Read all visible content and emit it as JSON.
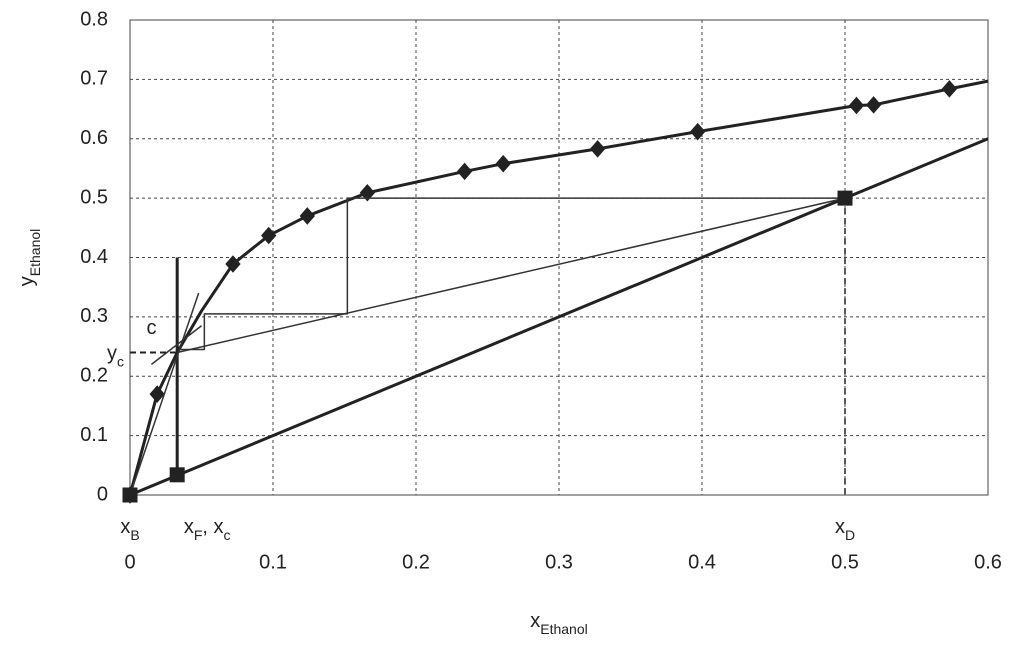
{
  "chart_data": {
    "type": "line",
    "xlabel": {
      "text": "x",
      "sub": "Ethanol"
    },
    "ylabel": {
      "text": "y",
      "sub": "Ethanol"
    },
    "xlim": [
      0,
      0.6
    ],
    "ylim": [
      0,
      0.8
    ],
    "xticks": [
      0,
      0.1,
      0.2,
      0.3,
      0.4,
      0.5,
      0.6
    ],
    "yticks": [
      0,
      0.1,
      0.2,
      0.3,
      0.4,
      0.5,
      0.6,
      0.7,
      0.8
    ],
    "grid": true,
    "series": [
      {
        "color": "#222222",
        "width": 3,
        "marker": "none",
        "x": [
          0,
          0.019,
          0.033,
          0.05,
          0.072,
          0.097,
          0.124,
          0.166,
          0.234,
          0.261,
          0.327,
          0.397,
          0.508,
          0.52,
          0.573,
          0.6
        ],
        "values": [
          0,
          0.17,
          0.24,
          0.31,
          0.389,
          0.437,
          0.47,
          0.509,
          0.545,
          0.558,
          0.583,
          0.612,
          0.656,
          0.657,
          0.684,
          0.697
        ]
      },
      {
        "color": "#222222",
        "width": 0,
        "marker": "diamond",
        "x": [
          0,
          0.019,
          0.072,
          0.097,
          0.124,
          0.166,
          0.234,
          0.261,
          0.327,
          0.397,
          0.508,
          0.52,
          0.573
        ],
        "values": [
          0,
          0.17,
          0.389,
          0.437,
          0.47,
          0.509,
          0.545,
          0.558,
          0.583,
          0.612,
          0.656,
          0.657,
          0.684
        ]
      },
      {
        "color": "#222222",
        "width": 3,
        "marker": "none",
        "x": [
          0,
          0.6
        ],
        "values": [
          0,
          0.6
        ]
      },
      {
        "color": "#333333",
        "width": 1.5,
        "marker": "none",
        "x": [
          0.033,
          0.5
        ],
        "values": [
          0.24,
          0.5
        ]
      },
      {
        "color": "#333333",
        "width": 1.5,
        "marker": "none",
        "x": [
          0.5,
          0.152,
          0.152,
          0.052,
          0.052,
          0.033
        ],
        "values": [
          0.5,
          0.5,
          0.305,
          0.305,
          0.245,
          0.245
        ]
      },
      {
        "color": "#222222",
        "width": 3,
        "marker": "none",
        "x": [
          0.033,
          0.033
        ],
        "values": [
          0.034,
          0.4
        ]
      },
      {
        "color": "#333333",
        "width": 1.5,
        "marker": "none",
        "x": [
          0,
          0.048
        ],
        "values": [
          0,
          0.34
        ]
      },
      {
        "color": "#333333",
        "width": 1.5,
        "marker": "none",
        "x": [
          0.015,
          0.05
        ],
        "values": [
          0.22,
          0.285
        ]
      },
      {
        "color": "#222222",
        "width": 2,
        "dash": true,
        "marker": "none",
        "x": [
          0,
          0.033
        ],
        "values": [
          0.24,
          0.24
        ]
      },
      {
        "color": "#222222",
        "width": 1.5,
        "dash": true,
        "marker": "none",
        "x": [
          0.5,
          0.5
        ],
        "values": [
          0.5,
          0
        ]
      },
      {
        "color": "#222222",
        "width": 0,
        "marker": "square",
        "x": [
          0,
          0.033,
          0.5
        ],
        "values": [
          0,
          0.034,
          0.5
        ]
      }
    ],
    "annotations": [
      {
        "text": "x",
        "sub": "B",
        "x": 0
      },
      {
        "text": "x",
        "sub": "F",
        "more": ", x",
        "sub2": "c",
        "x": 0.033
      },
      {
        "text": "x",
        "sub": "D",
        "x": 0.5
      },
      {
        "text": "y",
        "sub": "c",
        "y": 0.24
      },
      {
        "text": "c",
        "x": 0.015,
        "y": 0.28
      }
    ]
  }
}
